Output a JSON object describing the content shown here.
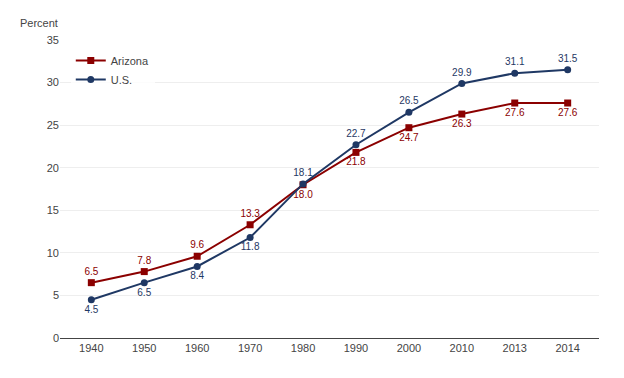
{
  "chart_data": {
    "type": "line",
    "categories": [
      "1940",
      "1950",
      "1960",
      "1970",
      "1980",
      "1990",
      "2000",
      "2010",
      "2013",
      "2014"
    ],
    "series": [
      {
        "name": "Arizona",
        "color": "#8B0000",
        "marker": "square",
        "values": [
          6.5,
          7.8,
          9.6,
          13.3,
          18.0,
          21.8,
          24.7,
          26.3,
          27.6,
          27.6
        ],
        "value_labels": [
          "6.5",
          "7.8",
          "9.6",
          "13.3",
          "18.0",
          "21.8",
          "24.7",
          "26.3",
          "27.6",
          "27.6"
        ]
      },
      {
        "name": "U.S.",
        "color": "#1F3864",
        "marker": "circle",
        "values": [
          4.5,
          6.5,
          8.4,
          11.8,
          18.1,
          22.7,
          26.5,
          29.9,
          31.1,
          31.5
        ],
        "value_labels": [
          "4.5",
          "6.5",
          "8.4",
          "11.8",
          "18.1",
          "22.7",
          "26.5",
          "29.9",
          "31.1",
          "31.5"
        ]
      }
    ],
    "ylabel": "Percent",
    "ylim": [
      0,
      35
    ],
    "yticks": [
      0,
      5,
      10,
      15,
      20,
      25,
      30,
      35
    ],
    "grid": true,
    "legend": "upper left",
    "data_labels": true
  }
}
